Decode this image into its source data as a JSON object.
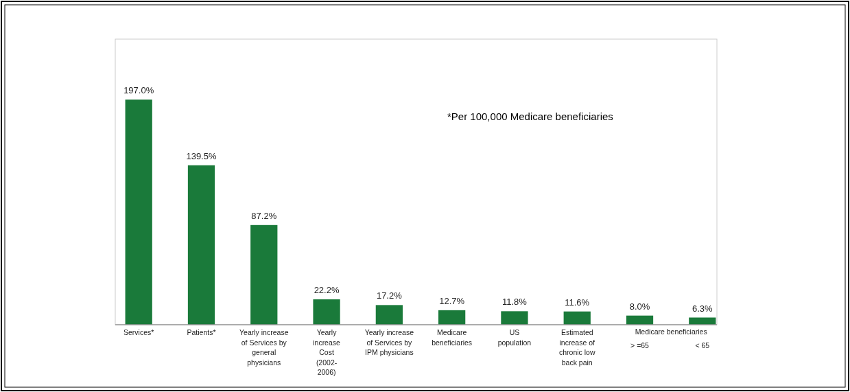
{
  "chart_data": {
    "type": "bar",
    "categories": [
      "Services*",
      "Patients*",
      "Yearly increase\nof Services by\ngeneral\nphysicians",
      "Yearly\nincrease\nCost\n(2002-\n2006)",
      "Yearly increase\nof Services by\nIPM  physicians",
      "Medicare\nbeneficiaries",
      "US\npopulation",
      "Estimated\nincrease of\nchronic low\nback pain",
      "> =65",
      "< 65"
    ],
    "values": [
      197.0,
      139.5,
      87.2,
      22.2,
      17.2,
      12.7,
      11.8,
      11.6,
      8.0,
      6.3
    ],
    "value_labels": [
      "197.0%",
      "139.5%",
      "87.2%",
      "22.2%",
      "17.2%",
      "12.7%",
      "11.8%",
      "11.6%",
      "8.0%",
      "6.3%"
    ],
    "color": "#1a7a3a",
    "annotations": [
      "*Per 100,000 Medicare beneficiaries",
      "Medicare beneficiaries"
    ]
  }
}
